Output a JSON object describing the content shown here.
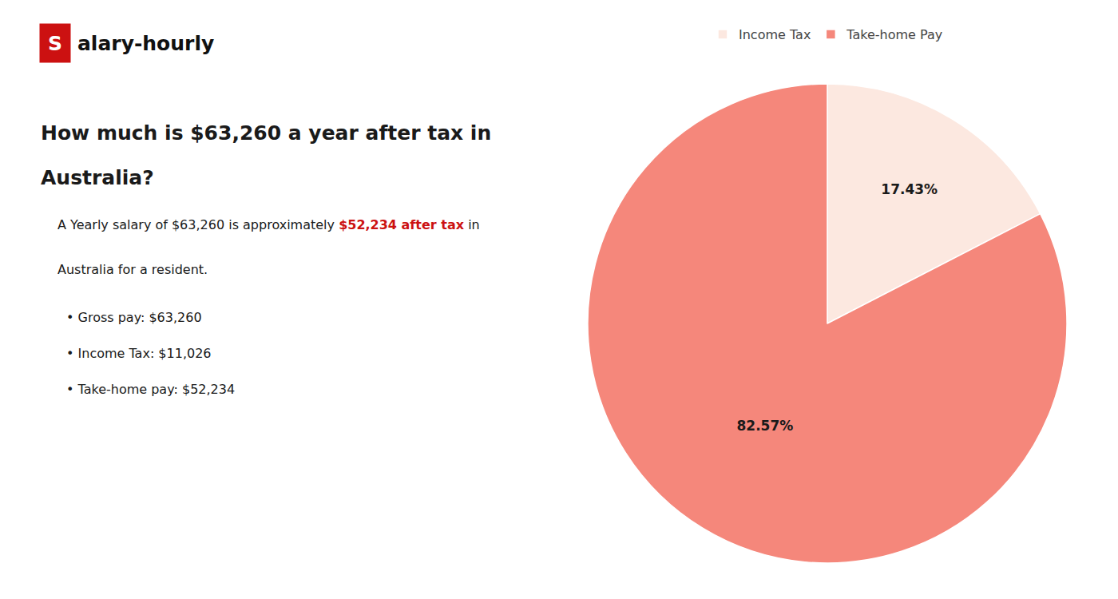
{
  "chart_data": {
    "type": "pie",
    "categories": [
      "Income Tax",
      "Take-home Pay"
    ],
    "values": [
      17.43,
      82.57
    ],
    "value_labels": [
      "17.43%",
      "82.57%"
    ],
    "data_labels": true,
    "colors": [
      "#fce8e0",
      "#f5877b"
    ],
    "legend": "top",
    "annotations": [
      {
        "text": "S",
        "color": "#ffffff",
        "background": "#cc1111"
      },
      {
        "text": "alary-hourly",
        "color": "#111111"
      },
      {
        "text": "How much is $63,260 a year after tax in",
        "color": "#1a1a1a"
      },
      {
        "text": "Australia?",
        "color": "#1a1a1a"
      },
      {
        "text": "A Yearly salary of $63,260 is approximately ",
        "color": "#1a1a1a"
      },
      {
        "text": "$52,234 after tax",
        "color": "#cc1111"
      },
      {
        "text": " in",
        "color": "#1a1a1a"
      },
      {
        "text": "Australia for a resident.",
        "color": "#1a1a1a"
      },
      {
        "text": "• Gross pay: $63,260",
        "color": "#1a1a1a"
      },
      {
        "text": "• Income Tax: $11,026",
        "color": "#1a1a1a"
      },
      {
        "text": "• Take-home pay: $52,234",
        "color": "#1a1a1a"
      }
    ]
  }
}
